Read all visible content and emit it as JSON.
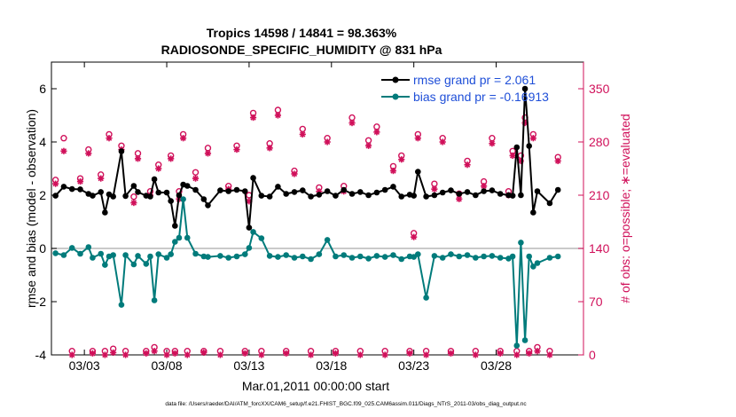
{
  "chart_data": {
    "type": "line",
    "title": "Tropics 14598 / 14841 = 98.363%",
    "subtitle": "RADIOSONDE_SPECIFIC_HUMIDITY @ 831 hPa",
    "xlabel": "Mar.01,2011 00:00:00 start",
    "ylabel": "rmse and bias (model - observation)",
    "ylabel_right": "# of obs: o=possible; ∗=evaluated",
    "xlim": [
      1.0,
      33.3
    ],
    "ylim": [
      -4,
      7
    ],
    "ylim_right": [
      0,
      385
    ],
    "xticks": [
      3,
      8,
      13,
      18,
      23,
      28
    ],
    "xtick_labels": [
      "03/03",
      "03/08",
      "03/13",
      "03/18",
      "03/23",
      "03/28"
    ],
    "yticks": [
      -4,
      -2,
      0,
      2,
      4,
      6
    ],
    "yticks_right": [
      0,
      70,
      140,
      210,
      280,
      350
    ],
    "footnote": "data file: /Users/raeder/DAI/ATM_forcXX/CAM6_setup/f.e21.FHIST_BGC.f09_025.CAM6assim.011/Diags_NTrS_2011-03/obs_diag_output.nc",
    "legend": [
      {
        "label": "rmse grand pr = 2.061",
        "color": "#000000"
      },
      {
        "label": "bias grand pr = -0.16913",
        "color": "#007b7b"
      }
    ],
    "series": [
      {
        "name": "rmse",
        "color": "#000000",
        "x": [
          1.25,
          1.75,
          2.25,
          2.75,
          3.25,
          3.5,
          4.0,
          4.25,
          4.5,
          4.75,
          5.25,
          5.5,
          6.0,
          6.25,
          6.75,
          7.0,
          7.25,
          7.5,
          8.0,
          8.25,
          8.5,
          8.75,
          9.0,
          9.25,
          9.75,
          10.25,
          10.5,
          11.25,
          11.75,
          12.25,
          12.75,
          13.0,
          13.25,
          13.75,
          14.25,
          14.75,
          15.25,
          15.75,
          16.25,
          16.75,
          17.25,
          17.75,
          18.25,
          18.75,
          19.25,
          19.75,
          20.25,
          20.75,
          21.25,
          21.75,
          22.25,
          22.75,
          23.0,
          23.25,
          23.75,
          24.25,
          24.75,
          25.25,
          25.75,
          26.25,
          26.75,
          27.25,
          27.75,
          28.25,
          28.75,
          29.0,
          29.25,
          29.5,
          29.75,
          30.0,
          30.25,
          30.5,
          31.25,
          31.75
        ],
        "values": [
          1.98,
          2.32,
          2.23,
          2.22,
          2.05,
          1.98,
          2.12,
          1.35,
          2.03,
          1.95,
          3.65,
          1.97,
          2.35,
          2.12,
          1.98,
          1.95,
          2.6,
          2.1,
          2.1,
          1.78,
          0.85,
          2.0,
          2.4,
          2.35,
          2.2,
          1.85,
          1.62,
          2.18,
          2.15,
          2.2,
          2.15,
          0.78,
          2.65,
          1.98,
          1.95,
          2.32,
          2.05,
          2.12,
          2.18,
          1.95,
          2.02,
          2.15,
          1.98,
          2.2,
          2.05,
          2.12,
          2.0,
          2.1,
          2.2,
          2.32,
          1.95,
          2.02,
          1.98,
          2.88,
          1.95,
          2.0,
          2.1,
          2.18,
          2.05,
          2.12,
          2.0,
          2.15,
          2.18,
          2.05,
          2.0,
          1.98,
          3.8,
          2.0,
          6.0,
          3.85,
          1.35,
          2.15,
          1.7,
          2.2
        ]
      },
      {
        "name": "bias",
        "color": "#007b7b",
        "x": [
          1.25,
          1.75,
          2.25,
          2.75,
          3.25,
          3.5,
          4.0,
          4.25,
          4.5,
          4.75,
          5.25,
          5.5,
          6.0,
          6.25,
          6.75,
          7.0,
          7.25,
          7.5,
          8.0,
          8.25,
          8.5,
          8.75,
          9.0,
          9.25,
          9.75,
          10.25,
          10.5,
          11.25,
          11.75,
          12.25,
          12.75,
          13.0,
          13.25,
          13.75,
          14.25,
          14.75,
          15.25,
          15.75,
          16.25,
          16.75,
          17.25,
          17.75,
          18.25,
          18.75,
          19.25,
          19.75,
          20.25,
          20.75,
          21.25,
          21.75,
          22.25,
          22.75,
          23.0,
          23.25,
          23.75,
          24.25,
          24.75,
          25.25,
          25.75,
          26.25,
          26.75,
          27.25,
          27.75,
          28.25,
          28.75,
          29.0,
          29.25,
          29.5,
          29.75,
          30.0,
          30.25,
          30.5,
          31.25,
          31.75
        ],
        "values": [
          -0.18,
          -0.25,
          0.02,
          -0.2,
          0.05,
          -0.35,
          -0.2,
          -0.62,
          -0.3,
          -0.25,
          -2.12,
          -0.25,
          -0.6,
          -0.28,
          -0.58,
          -0.3,
          -1.95,
          -0.22,
          -0.35,
          -0.22,
          0.25,
          0.4,
          1.85,
          0.4,
          -0.2,
          -0.3,
          -0.32,
          -0.28,
          -0.35,
          -0.3,
          -0.22,
          0.02,
          0.62,
          0.38,
          -0.28,
          -0.32,
          -0.25,
          -0.35,
          -0.3,
          -0.4,
          -0.22,
          0.32,
          -0.3,
          -0.25,
          -0.35,
          -0.3,
          -0.38,
          -0.28,
          -0.32,
          -0.25,
          -0.4,
          -0.3,
          -0.32,
          -0.22,
          -1.85,
          -0.28,
          -0.35,
          -0.22,
          -0.3,
          -0.25,
          -0.35,
          -0.3,
          -0.28,
          -0.35,
          -0.38,
          -0.3,
          -3.65,
          0.22,
          -3.45,
          -0.3,
          -0.68,
          -0.55,
          -0.35,
          -0.3
        ]
      },
      {
        "name": "obs possible",
        "axis": "right",
        "marker": "o",
        "color": "#d0105a",
        "x": [
          1.25,
          1.75,
          2.25,
          2.75,
          3.25,
          3.5,
          4.0,
          4.25,
          4.5,
          4.75,
          5.25,
          5.5,
          6.0,
          6.25,
          6.75,
          7.0,
          7.25,
          7.5,
          8.0,
          8.25,
          8.5,
          8.75,
          9.0,
          9.25,
          9.75,
          10.25,
          10.5,
          11.25,
          11.75,
          12.25,
          12.75,
          13.0,
          13.25,
          13.75,
          14.25,
          14.75,
          15.25,
          15.75,
          16.25,
          16.75,
          17.25,
          17.75,
          18.25,
          18.75,
          19.25,
          19.75,
          20.25,
          20.75,
          21.25,
          21.75,
          22.25,
          22.75,
          23.0,
          23.25,
          23.75,
          24.25,
          24.75,
          25.25,
          25.75,
          26.25,
          26.75,
          27.25,
          27.75,
          28.25,
          28.75,
          29.0,
          29.25,
          29.5,
          29.75,
          30.0,
          30.25,
          30.5,
          31.25,
          31.75
        ],
        "values": [
          230,
          285,
          5,
          232,
          270,
          5,
          237,
          5,
          290,
          8,
          275,
          5,
          208,
          265,
          5,
          215,
          10,
          250,
          5,
          262,
          5,
          215,
          290,
          5,
          240,
          5,
          272,
          5,
          222,
          275,
          5,
          210,
          318,
          5,
          278,
          322,
          5,
          242,
          297,
          5,
          220,
          285,
          5,
          222,
          312,
          5,
          282,
          300,
          5,
          248,
          262,
          5,
          160,
          290,
          5,
          225,
          285,
          5,
          212,
          255,
          5,
          228,
          285,
          5,
          215,
          268,
          5,
          262,
          312,
          5,
          290,
          10,
          5,
          260
        ]
      },
      {
        "name": "obs evaluated",
        "axis": "right",
        "marker": "*",
        "color": "#d0105a",
        "x": [
          1.25,
          1.75,
          2.25,
          2.75,
          3.25,
          3.5,
          4.0,
          4.25,
          4.5,
          4.75,
          5.25,
          5.5,
          6.0,
          6.25,
          6.75,
          7.0,
          7.25,
          7.5,
          8.0,
          8.25,
          8.5,
          8.75,
          9.0,
          9.25,
          9.75,
          10.25,
          10.5,
          11.25,
          11.75,
          12.25,
          12.75,
          13.0,
          13.25,
          13.75,
          14.25,
          14.75,
          15.25,
          15.75,
          16.25,
          16.75,
          17.25,
          17.75,
          18.25,
          18.75,
          19.25,
          19.75,
          20.25,
          20.75,
          21.25,
          21.75,
          22.25,
          22.75,
          23.0,
          23.25,
          23.75,
          24.25,
          24.75,
          25.25,
          25.75,
          26.25,
          26.75,
          27.25,
          27.75,
          28.25,
          28.75,
          29.0,
          29.25,
          29.5,
          29.75,
          30.0,
          30.25,
          30.5,
          31.25,
          31.75
        ],
        "values": [
          225,
          268,
          0,
          228,
          265,
          2,
          232,
          0,
          285,
          3,
          270,
          0,
          200,
          258,
          2,
          210,
          5,
          245,
          0,
          258,
          2,
          205,
          285,
          0,
          232,
          3,
          265,
          0,
          218,
          270,
          2,
          202,
          312,
          0,
          272,
          315,
          2,
          238,
          290,
          0,
          215,
          280,
          2,
          215,
          305,
          0,
          275,
          293,
          0,
          242,
          257,
          2,
          155,
          285,
          0,
          218,
          280,
          2,
          205,
          250,
          0,
          222,
          278,
          2,
          210,
          262,
          0,
          255,
          305,
          2,
          285,
          5,
          0,
          255
        ]
      }
    ]
  }
}
